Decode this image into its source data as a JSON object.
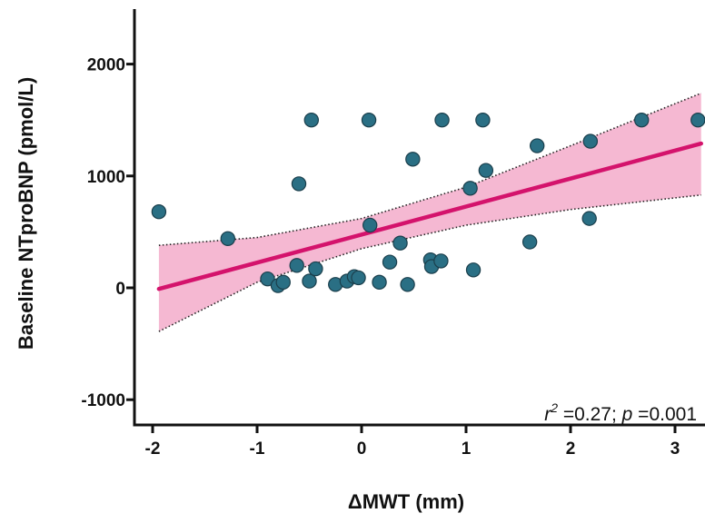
{
  "chart_data": {
    "type": "scatter",
    "xlabel": "ΔMWT (mm)",
    "ylabel": "Baseline NTproBNP (pmol/L)",
    "xlim": [
      -2.1,
      3.25
    ],
    "ylim": [
      -1250,
      2500
    ],
    "x_ticks": [
      -2,
      -1,
      0,
      1,
      2,
      3
    ],
    "x_tick_labels": [
      "-2",
      "-1",
      "0",
      "1",
      "2",
      "3"
    ],
    "y_ticks": [
      -1000,
      0,
      1000,
      2000
    ],
    "y_tick_labels": [
      "-1000",
      "0",
      "1000",
      "2000"
    ],
    "points": [
      {
        "x": -1.94,
        "y": 680
      },
      {
        "x": -1.28,
        "y": 440
      },
      {
        "x": -0.9,
        "y": 80
      },
      {
        "x": -0.8,
        "y": 20
      },
      {
        "x": -0.75,
        "y": 50
      },
      {
        "x": -0.62,
        "y": 200
      },
      {
        "x": -0.6,
        "y": 930
      },
      {
        "x": -0.5,
        "y": 60
      },
      {
        "x": -0.48,
        "y": 1500
      },
      {
        "x": -0.44,
        "y": 170
      },
      {
        "x": -0.25,
        "y": 30
      },
      {
        "x": -0.14,
        "y": 60
      },
      {
        "x": -0.07,
        "y": 100
      },
      {
        "x": -0.03,
        "y": 90
      },
      {
        "x": 0.07,
        "y": 1500
      },
      {
        "x": 0.08,
        "y": 560
      },
      {
        "x": 0.17,
        "y": 50
      },
      {
        "x": 0.27,
        "y": 230
      },
      {
        "x": 0.37,
        "y": 400
      },
      {
        "x": 0.44,
        "y": 30
      },
      {
        "x": 0.49,
        "y": 1150
      },
      {
        "x": 0.66,
        "y": 250
      },
      {
        "x": 0.67,
        "y": 190
      },
      {
        "x": 0.76,
        "y": 240
      },
      {
        "x": 0.77,
        "y": 1500
      },
      {
        "x": 1.04,
        "y": 890
      },
      {
        "x": 1.07,
        "y": 160
      },
      {
        "x": 1.16,
        "y": 1500
      },
      {
        "x": 1.19,
        "y": 1050
      },
      {
        "x": 1.61,
        "y": 410
      },
      {
        "x": 1.68,
        "y": 1270
      },
      {
        "x": 2.18,
        "y": 620
      },
      {
        "x": 2.19,
        "y": 1310
      },
      {
        "x": 2.68,
        "y": 1500
      },
      {
        "x": 3.22,
        "y": 1500
      }
    ],
    "fit": {
      "x0": -1.94,
      "y0": -10,
      "x1": 3.25,
      "y1": 1290
    },
    "ci_upper": [
      {
        "x": -1.94,
        "y": 380
      },
      {
        "x": -1.0,
        "y": 450
      },
      {
        "x": 0.0,
        "y": 620
      },
      {
        "x": 1.0,
        "y": 900
      },
      {
        "x": 2.0,
        "y": 1270
      },
      {
        "x": 3.25,
        "y": 1740
      }
    ],
    "ci_lower": [
      {
        "x": -1.94,
        "y": -390
      },
      {
        "x": -1.0,
        "y": 50
      },
      {
        "x": 0.0,
        "y": 350
      },
      {
        "x": 1.0,
        "y": 560
      },
      {
        "x": 2.0,
        "y": 700
      },
      {
        "x": 3.25,
        "y": 830
      }
    ],
    "annotation": {
      "r_symbol": "r",
      "r_exponent": "2",
      "r_value": " =0.27; ",
      "p_symbol": "p",
      "p_value": " =0.001"
    },
    "colors": {
      "point_fill": "#2a6f84",
      "point_stroke": "#1b3f4c",
      "fit_line": "#d4136c",
      "ci_band": "#f5b8d2",
      "ci_edge": "#222222",
      "axis": "#111111"
    },
    "grid": false,
    "legend": "none"
  }
}
